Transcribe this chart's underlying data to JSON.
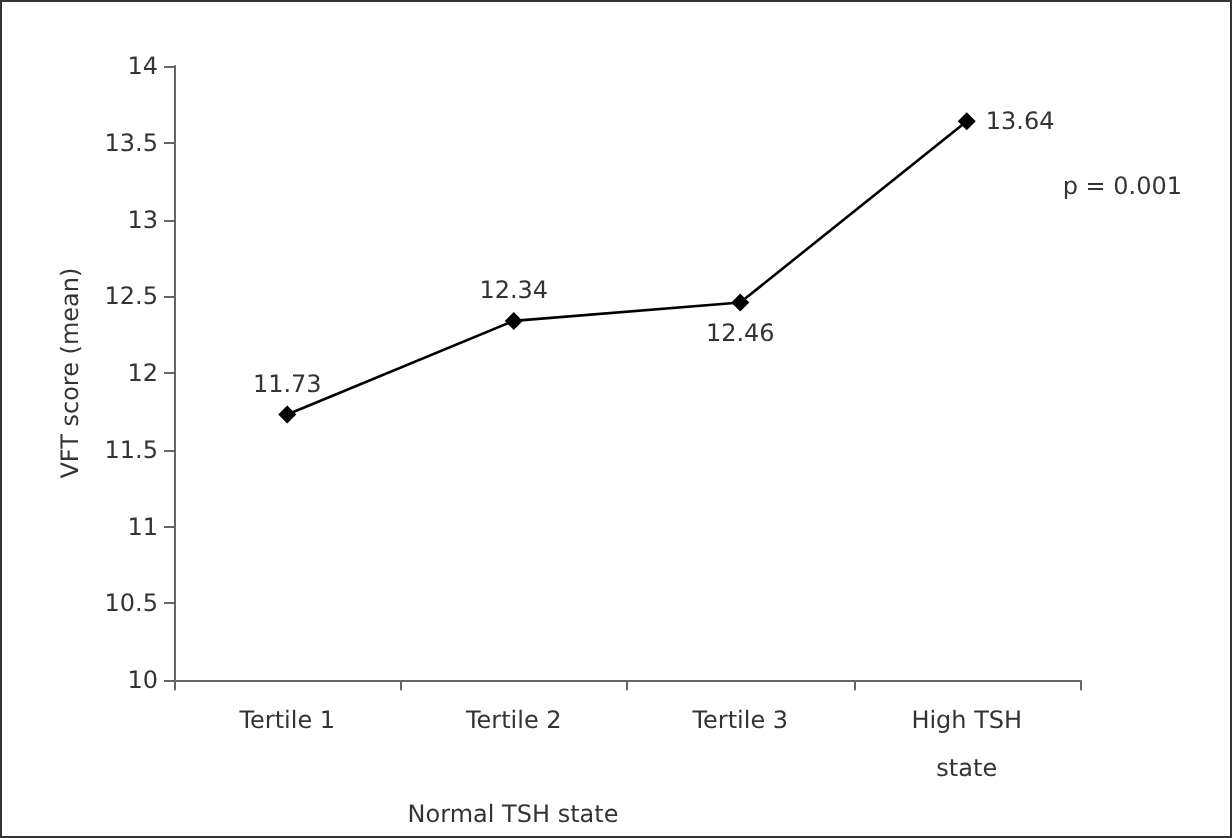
{
  "chart_data": {
    "type": "line",
    "ylabel": "VFT score (mean)",
    "xlabel": "Normal TSH state",
    "categories": [
      "Tertile 1",
      "Tertile 2",
      "Tertile 3",
      "High TSH\nstate"
    ],
    "series": [
      {
        "color": "#000000",
        "values": [
          11.73,
          12.34,
          12.46,
          13.64
        ]
      }
    ],
    "ylim": [
      10,
      14
    ],
    "yticks": [
      10,
      10.5,
      11,
      11.5,
      12,
      12.5,
      13,
      13.5,
      14
    ],
    "data_labels": true,
    "marker": "diamond",
    "line_style": "solid",
    "annotations": [
      "p = 0.001"
    ]
  }
}
